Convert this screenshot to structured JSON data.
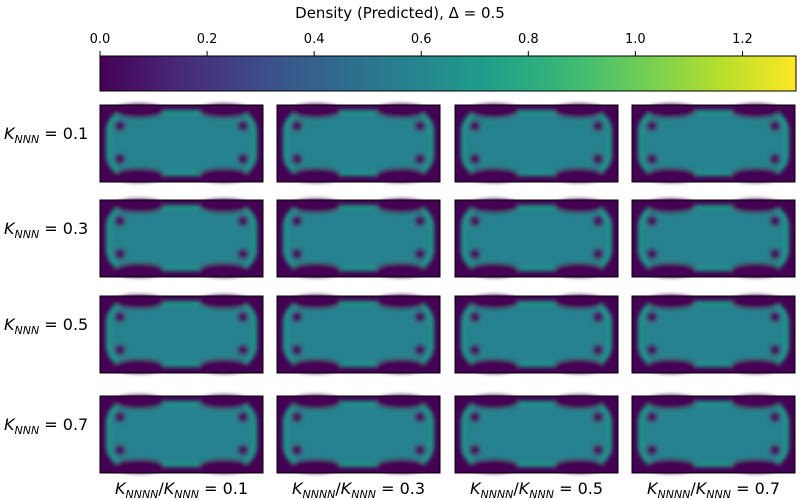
{
  "chart_data": {
    "type": "heatmap",
    "title": "Density (Predicted), Δ = 0.5",
    "colorbar": {
      "colormap": "viridis",
      "range": [
        0.0,
        1.3
      ],
      "ticks": [
        0.0,
        0.2,
        0.4,
        0.6,
        0.8,
        1.0,
        1.2
      ],
      "tick_labels": [
        "0.0",
        "0.2",
        "0.4",
        "0.6",
        "0.8",
        "1.0",
        "1.2"
      ],
      "placement": "top"
    },
    "grid": {
      "rows": 4,
      "cols": 4
    },
    "row_labels": [
      {
        "base": "K",
        "sub": "NNN",
        "eq": " = 0.1"
      },
      {
        "base": "K",
        "sub": "NNN",
        "eq": " = 0.3"
      },
      {
        "base": "K",
        "sub": "NNN",
        "eq": " = 0.5"
      },
      {
        "base": "K",
        "sub": "NNN",
        "eq": " = 0.7"
      }
    ],
    "col_labels": [
      {
        "a": "K",
        "asub": "NNNN",
        "b": "K",
        "bsub": "NNN",
        "eq": " = 0.1"
      },
      {
        "a": "K",
        "asub": "NNNN",
        "b": "K",
        "bsub": "NNN",
        "eq": " = 0.3"
      },
      {
        "a": "K",
        "asub": "NNNN",
        "b": "K",
        "bsub": "NNN",
        "eq": " = 0.5"
      },
      {
        "a": "K",
        "asub": "NNNN",
        "b": "K",
        "bsub": "NNN",
        "eq": " = 0.7"
      }
    ],
    "density": {
      "outside": 0.0,
      "bulk": 0.58,
      "rim": 0.72,
      "hole": 0.05
    },
    "dumbbell_shape": {
      "kind": "dumbbell with four holes",
      "orientation": "horizontal"
    }
  }
}
